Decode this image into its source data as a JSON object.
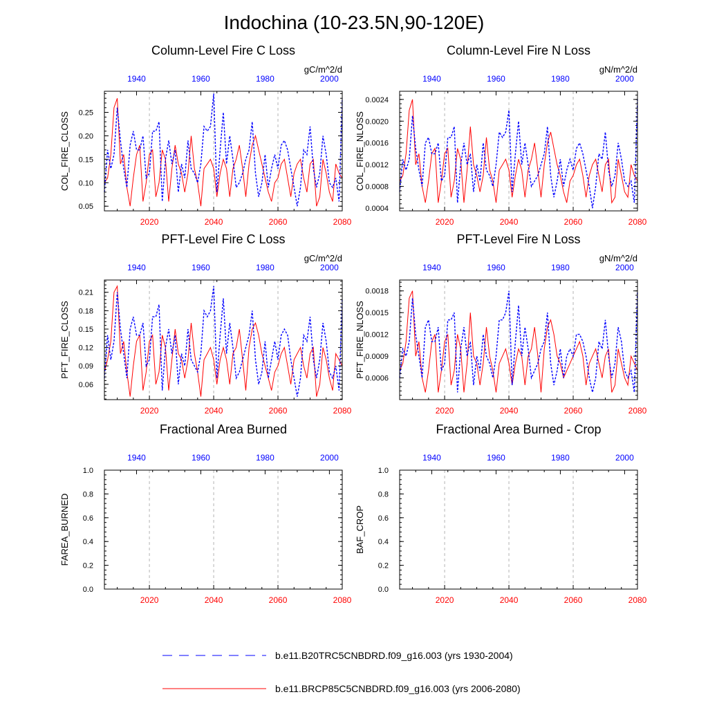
{
  "figure": {
    "title": "Indochina (10-23.5N,90-120E)"
  },
  "legend": {
    "placement": "bottom-center",
    "entries": [
      {
        "label": "b.e11.B20TRC5CNBDRD.f09_g16.003 (yrs 1930-2004)",
        "color": "#0000ff",
        "style": "dashed"
      },
      {
        "label": "b.e11.BRCP85C5CNBDRD.f09_g16.003 (yrs 2006-2080)",
        "color": "#ff0000",
        "style": "solid"
      }
    ]
  },
  "colors": {
    "bottom_axis": "#ff0000",
    "top_axis": "#0000ff",
    "grid": "#b3b3b3"
  },
  "chart_data": [
    {
      "type": "line",
      "title": "Column-Level Fire C Loss",
      "units": "gC/m^2/d",
      "ylabel": "COL_FIRE_CLOSS",
      "ylim": [
        0.04,
        0.295
      ],
      "yticks": [
        0.05,
        0.1,
        0.15,
        0.2,
        0.25
      ],
      "ytick_labels": [
        "0.05",
        "0.10",
        "0.15",
        "0.20",
        "0.25"
      ],
      "xlim_bottom": [
        2006,
        2080
      ],
      "xticks_bottom": [
        "2020",
        "2040",
        "2060",
        "2080"
      ],
      "xlim_top": [
        1930,
        2004
      ],
      "xticks_top": [
        "1940",
        "1960",
        "1980",
        "2000"
      ],
      "grid_x": [
        2020,
        2040,
        2060
      ],
      "series": [
        {
          "values": [
            0.1,
            0.11,
            0.16,
            0.26,
            0.28,
            0.14,
            0.16,
            0.09,
            0.05,
            0.11,
            0.16,
            0.18,
            0.06,
            0.1,
            0.16,
            0.17,
            0.07,
            0.1,
            0.17,
            0.15,
            0.06,
            0.13,
            0.18,
            0.14,
            0.12,
            0.08,
            0.12,
            0.2,
            0.13,
            0.1,
            0.05,
            0.13,
            0.14,
            0.15,
            0.13,
            0.07,
            0.12,
            0.15,
            0.13,
            0.07,
            0.13,
            0.15,
            0.18,
            0.13,
            0.07,
            0.14,
            0.18,
            0.2,
            0.17,
            0.14,
            0.11,
            0.08,
            0.06,
            0.1,
            0.11,
            0.14,
            0.15,
            0.11,
            0.07,
            0.12,
            0.14,
            0.15,
            0.11,
            0.08,
            0.14,
            0.15,
            0.05,
            0.07,
            0.15,
            0.12,
            0.08,
            0.06,
            0.14,
            0.12,
            0.11
          ]
        },
        {
          "values": [
            0.08,
            0.17,
            0.13,
            0.16,
            0.26,
            0.19,
            0.13,
            0.09,
            0.18,
            0.21,
            0.17,
            0.17,
            0.2,
            0.11,
            0.12,
            0.21,
            0.21,
            0.23,
            0.06,
            0.15,
            0.19,
            0.14,
            0.17,
            0.08,
            0.14,
            0.11,
            0.19,
            0.13,
            0.12,
            0.1,
            0.14,
            0.22,
            0.21,
            0.22,
            0.29,
            0.08,
            0.17,
            0.25,
            0.14,
            0.2,
            0.15,
            0.09,
            0.1,
            0.12,
            0.15,
            0.17,
            0.23,
            0.12,
            0.07,
            0.1,
            0.16,
            0.09,
            0.13,
            0.16,
            0.13,
            0.18,
            0.19,
            0.17,
            0.13,
            0.09,
            0.05,
            0.09,
            0.17,
            0.16,
            0.22,
            0.13,
            0.09,
            0.12,
            0.2,
            0.16,
            0.1,
            0.09,
            0.11,
            0.06,
            0.28
          ]
        }
      ]
    },
    {
      "type": "line",
      "title": "Column-Level Fire N Loss",
      "units": "gN/m^2/d",
      "ylabel": "COL_FIRE_NLOSS",
      "ylim": [
        0.00035,
        0.00255
      ],
      "yticks": [
        0.0004,
        0.0008,
        0.0012,
        0.0016,
        0.002,
        0.0024
      ],
      "ytick_labels": [
        "0.0004",
        "0.0008",
        "0.0012",
        "0.0016",
        "0.0020",
        "0.0024"
      ],
      "xlim_bottom": [
        2006,
        2080
      ],
      "xticks_bottom": [
        "2020",
        "2040",
        "2060",
        "2080"
      ],
      "xlim_top": [
        1930,
        2004
      ],
      "xticks_top": [
        "1940",
        "1960",
        "1980",
        "2000"
      ],
      "grid_x": [
        2020,
        2040,
        2060
      ],
      "series": [
        {
          "values": [
            0.0009,
            0.001,
            0.0014,
            0.0022,
            0.0024,
            0.0012,
            0.0014,
            0.0008,
            0.0005,
            0.0009,
            0.0014,
            0.0015,
            0.0005,
            0.0009,
            0.0014,
            0.0015,
            0.0006,
            0.0009,
            0.0015,
            0.0013,
            0.0005,
            0.0011,
            0.0019,
            0.0012,
            0.001,
            0.0007,
            0.001,
            0.0017,
            0.0011,
            0.0009,
            0.0005,
            0.0011,
            0.0012,
            0.0013,
            0.0011,
            0.0006,
            0.001,
            0.0013,
            0.0011,
            0.0006,
            0.0011,
            0.0013,
            0.0016,
            0.0011,
            0.0006,
            0.0012,
            0.0016,
            0.0018,
            0.0015,
            0.0012,
            0.001,
            0.0007,
            0.0005,
            0.0009,
            0.001,
            0.0012,
            0.0013,
            0.001,
            0.0006,
            0.001,
            0.0012,
            0.0013,
            0.001,
            0.0007,
            0.0012,
            0.0013,
            0.0005,
            0.0006,
            0.0013,
            0.001,
            0.0007,
            0.0006,
            0.0012,
            0.001,
            0.0009
          ]
        },
        {
          "values": [
            0.0007,
            0.0013,
            0.0011,
            0.0013,
            0.0021,
            0.0015,
            0.0011,
            0.0008,
            0.0016,
            0.0017,
            0.0014,
            0.0014,
            0.0016,
            0.0009,
            0.001,
            0.0017,
            0.0017,
            0.0019,
            0.0005,
            0.0012,
            0.0016,
            0.0012,
            0.0014,
            0.0007,
            0.0012,
            0.0009,
            0.0016,
            0.0011,
            0.001,
            0.0008,
            0.0012,
            0.0018,
            0.0017,
            0.0018,
            0.0022,
            0.0007,
            0.0014,
            0.002,
            0.0012,
            0.0016,
            0.0012,
            0.0008,
            0.0009,
            0.001,
            0.0012,
            0.0014,
            0.0019,
            0.001,
            0.0006,
            0.0009,
            0.0013,
            0.0008,
            0.0011,
            0.0013,
            0.0011,
            0.0015,
            0.0016,
            0.0014,
            0.0011,
            0.0008,
            0.0004,
            0.0008,
            0.0014,
            0.0013,
            0.0018,
            0.0011,
            0.0008,
            0.001,
            0.0016,
            0.0013,
            0.0009,
            0.0008,
            0.0009,
            0.0005,
            0.0024
          ]
        }
      ]
    },
    {
      "type": "line",
      "title": "PFT-Level Fire C Loss",
      "units": "gC/m^2/d",
      "ylabel": "PFT_FIRE_CLOSS",
      "ylim": [
        0.035,
        0.23
      ],
      "yticks": [
        0.06,
        0.09,
        0.12,
        0.15,
        0.18,
        0.21
      ],
      "ytick_labels": [
        "0.06",
        "0.09",
        "0.12",
        "0.15",
        "0.18",
        "0.21"
      ],
      "xlim_bottom": [
        2006,
        2080
      ],
      "xticks_bottom": [
        "2020",
        "2040",
        "2060",
        "2080"
      ],
      "xlim_top": [
        1930,
        2004
      ],
      "xticks_top": [
        "1940",
        "1960",
        "1980",
        "2000"
      ],
      "grid_x": [
        2020,
        2040,
        2060
      ],
      "series": [
        {
          "values": [
            0.08,
            0.1,
            0.13,
            0.21,
            0.22,
            0.11,
            0.13,
            0.08,
            0.04,
            0.09,
            0.13,
            0.14,
            0.05,
            0.08,
            0.13,
            0.14,
            0.06,
            0.08,
            0.14,
            0.12,
            0.05,
            0.1,
            0.15,
            0.11,
            0.1,
            0.07,
            0.1,
            0.16,
            0.11,
            0.08,
            0.04,
            0.1,
            0.11,
            0.12,
            0.1,
            0.06,
            0.1,
            0.12,
            0.1,
            0.06,
            0.11,
            0.12,
            0.15,
            0.1,
            0.05,
            0.12,
            0.15,
            0.16,
            0.14,
            0.11,
            0.09,
            0.07,
            0.05,
            0.08,
            0.09,
            0.11,
            0.12,
            0.09,
            0.06,
            0.1,
            0.11,
            0.12,
            0.09,
            0.07,
            0.11,
            0.12,
            0.04,
            0.06,
            0.12,
            0.1,
            0.07,
            0.05,
            0.11,
            0.1,
            0.09
          ]
        },
        {
          "values": [
            0.07,
            0.14,
            0.1,
            0.13,
            0.21,
            0.15,
            0.11,
            0.07,
            0.15,
            0.17,
            0.14,
            0.14,
            0.16,
            0.09,
            0.1,
            0.17,
            0.17,
            0.19,
            0.05,
            0.12,
            0.15,
            0.11,
            0.14,
            0.06,
            0.11,
            0.09,
            0.15,
            0.1,
            0.09,
            0.08,
            0.11,
            0.18,
            0.17,
            0.18,
            0.22,
            0.07,
            0.14,
            0.2,
            0.11,
            0.16,
            0.12,
            0.07,
            0.08,
            0.1,
            0.12,
            0.14,
            0.18,
            0.1,
            0.06,
            0.08,
            0.13,
            0.07,
            0.1,
            0.13,
            0.1,
            0.14,
            0.15,
            0.14,
            0.1,
            0.07,
            0.04,
            0.07,
            0.14,
            0.13,
            0.17,
            0.1,
            0.07,
            0.1,
            0.16,
            0.13,
            0.08,
            0.07,
            0.09,
            0.05,
            0.2
          ]
        }
      ]
    },
    {
      "type": "line",
      "title": "PFT-Level Fire N Loss",
      "units": "gN/m^2/d",
      "ylabel": "PFT_FIRE_NLOSS",
      "ylim": [
        0.0003,
        0.00195
      ],
      "yticks": [
        0.0006,
        0.0009,
        0.0012,
        0.0015,
        0.0018
      ],
      "ytick_labels": [
        "0.0006",
        "0.0009",
        "0.0012",
        "0.0015",
        "0.0018"
      ],
      "xlim_bottom": [
        2006,
        2080
      ],
      "xticks_bottom": [
        "2020",
        "2040",
        "2060",
        "2080"
      ],
      "xlim_top": [
        1930,
        2004
      ],
      "xticks_top": [
        "1940",
        "1960",
        "1980",
        "2000"
      ],
      "grid_x": [
        2020,
        2040,
        2060
      ],
      "series": [
        {
          "values": [
            0.0007,
            0.0008,
            0.0011,
            0.0017,
            0.0018,
            0.0009,
            0.0011,
            0.0006,
            0.0004,
            0.0007,
            0.0011,
            0.0012,
            0.0004,
            0.0007,
            0.0011,
            0.0012,
            0.0005,
            0.0007,
            0.0012,
            0.001,
            0.0004,
            0.0008,
            0.0015,
            0.0009,
            0.0008,
            0.0005,
            0.0008,
            0.0013,
            0.0009,
            0.0007,
            0.0004,
            0.0008,
            0.0009,
            0.001,
            0.0008,
            0.0005,
            0.0008,
            0.001,
            0.0009,
            0.0005,
            0.0009,
            0.001,
            0.0013,
            0.0009,
            0.0004,
            0.001,
            0.0013,
            0.0014,
            0.0012,
            0.0009,
            0.0008,
            0.0006,
            0.0007,
            0.0008,
            0.0009,
            0.001,
            0.0011,
            0.0009,
            0.0005,
            0.0008,
            0.0009,
            0.001,
            0.0008,
            0.0006,
            0.0009,
            0.001,
            0.0004,
            0.0005,
            0.001,
            0.0008,
            0.0006,
            0.0005,
            0.0009,
            0.0008,
            0.0007
          ]
        },
        {
          "values": [
            0.0006,
            0.001,
            0.0009,
            0.0011,
            0.0017,
            0.0012,
            0.0009,
            0.0006,
            0.0013,
            0.0014,
            0.0011,
            0.0011,
            0.0013,
            0.0007,
            0.0008,
            0.0014,
            0.0014,
            0.0015,
            0.0004,
            0.001,
            0.0013,
            0.0009,
            0.0011,
            0.0005,
            0.0009,
            0.0007,
            0.0012,
            0.0009,
            0.0008,
            0.0006,
            0.0009,
            0.0014,
            0.0014,
            0.0015,
            0.0018,
            0.0005,
            0.0011,
            0.0016,
            0.0009,
            0.0013,
            0.001,
            0.0006,
            0.0007,
            0.0008,
            0.001,
            0.0011,
            0.0015,
            0.0008,
            0.0005,
            0.0007,
            0.001,
            0.0006,
            0.0009,
            0.001,
            0.0009,
            0.0012,
            0.0012,
            0.0011,
            0.0009,
            0.0006,
            0.0004,
            0.0006,
            0.0011,
            0.001,
            0.0014,
            0.0009,
            0.0006,
            0.0008,
            0.0013,
            0.0011,
            0.0007,
            0.0006,
            0.0007,
            0.0004,
            0.0018
          ]
        }
      ]
    },
    {
      "type": "line",
      "title": "Fractional Area Burned",
      "units": "",
      "ylabel": "FAREA_BURNED",
      "ylim": [
        0.0,
        1.0
      ],
      "yticks": [
        0.0,
        0.2,
        0.4,
        0.6,
        0.8,
        1.0
      ],
      "ytick_labels": [
        "0.0",
        "0.2",
        "0.4",
        "0.6",
        "0.8",
        "1.0"
      ],
      "xlim_bottom": [
        2006,
        2080
      ],
      "xticks_bottom": [
        "2020",
        "2040",
        "2060",
        "2080"
      ],
      "xlim_top": [
        1930,
        2004
      ],
      "xticks_top": [
        "1940",
        "1960",
        "1980",
        "2000"
      ],
      "grid_x": [
        2020,
        2040,
        2060
      ],
      "series": []
    },
    {
      "type": "line",
      "title": "Fractional Area Burned - Crop",
      "units": "",
      "ylabel": "BAF_CROP",
      "ylim": [
        0.0,
        1.0
      ],
      "yticks": [
        0.0,
        0.2,
        0.4,
        0.6,
        0.8,
        1.0
      ],
      "ytick_labels": [
        "0.0",
        "0.2",
        "0.4",
        "0.6",
        "0.8",
        "1.0"
      ],
      "xlim_bottom": [
        2006,
        2080
      ],
      "xticks_bottom": [
        "2020",
        "2040",
        "2060",
        "2080"
      ],
      "xlim_top": [
        1930,
        2004
      ],
      "xticks_top": [
        "1940",
        "1960",
        "1980",
        "2000"
      ],
      "grid_x": [
        2020,
        2040,
        2060
      ],
      "series": []
    }
  ]
}
